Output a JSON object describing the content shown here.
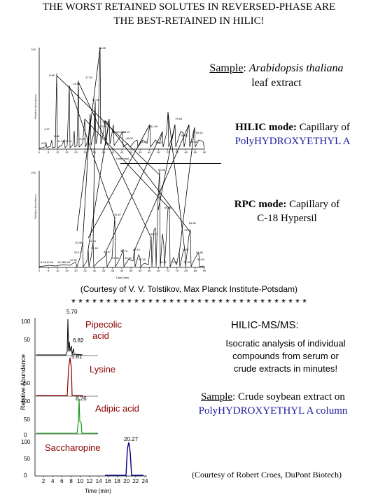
{
  "title": {
    "line1": "THE WORST RETAINED SOLUTES IN REVERSED-PHASE ARE",
    "line2": "THE BEST-RETAINED IN HILIC!"
  },
  "sample1": {
    "label": "Sample",
    "text_italic": "Arabidopsis thaliana",
    "text2": "leaf extract"
  },
  "hilic_mode": {
    "bold": "HILIC mode:",
    "text": "Capillary of",
    "column": "PolyHYDROXYETHYL A"
  },
  "rpc_mode": {
    "bold": "RPC mode:",
    "text": "Capillary of",
    "column": "C-18 Hypersil"
  },
  "chrom_top": {
    "ylabel": "Relative Abundance",
    "xlabel": "Time (min)",
    "xticks": [
      "0",
      "5",
      "10",
      "15",
      "20",
      "25",
      "30",
      "35",
      "40",
      "45",
      "50",
      "55",
      "60",
      "65",
      "70",
      "75",
      "80",
      "85",
      "90"
    ],
    "peak_labels": [
      "38.35",
      "8.98",
      "17.62",
      "14.82",
      "23.45",
      "19.05",
      "27.63",
      "42.32",
      "43.41",
      "41.21",
      "48.00",
      "61.49",
      "79.56",
      "76.66",
      "89.61",
      "51.37",
      "59.03",
      "85.00",
      "4.37",
      "9.88",
      "5.53",
      "11.36",
      "13.11",
      "13.99"
    ]
  },
  "chrom_bottom": {
    "ylabel": "Relative Abundance",
    "xlabel": "Time (min)",
    "xticks": [
      "0",
      "5",
      "10",
      "15",
      "20",
      "25",
      "30",
      "35",
      "40",
      "45",
      "50",
      "55",
      "60",
      "65",
      "70",
      "75",
      "80",
      "85",
      "90"
    ],
    "peak_labels": [
      "60.56",
      "66.01",
      "41.87",
      "81.62",
      "60.23",
      "76.76",
      "25.38",
      "29.28",
      "32.47",
      "32.80",
      "36.73",
      "25.12",
      "45.10",
      "73.97",
      "84.86",
      "90.00",
      "22.50",
      "8.15",
      "10.48",
      "15.32",
      "16.46",
      "37.84",
      "40.00",
      "51.35",
      "58.71",
      "72.84",
      "72.90"
    ]
  },
  "courtesy1": "(Courtesy of V. V. Tolstikov, Max Planck Institute-Potsdam)",
  "stars": "* * * * * * * * * * * * * * * * * * * * * * * * * * * * * * * * * *",
  "hilic_msms": {
    "title": "HILIC-MS/MS:",
    "desc": [
      "Isocratic analysis of individual",
      "compounds from serum or",
      "crude extracts in minutes!"
    ]
  },
  "sample2": {
    "label": "Sample",
    "text": "Crude soybean extract on",
    "column": "PolyHYDROXYETHYL A column"
  },
  "courtesy2": "(Courtesy of Robert Croes, DuPont Biotech)",
  "msms_chart": {
    "ylabel": "Relative Abundance",
    "xlabel": "Time (min)",
    "xticks": [
      "2",
      "4",
      "6",
      "8",
      "10",
      "12",
      "14",
      "16",
      "18",
      "20",
      "22",
      "24"
    ],
    "y_labels": {
      "p1_100": "100",
      "p1_50": "50",
      "p2_50": "50",
      "p3_100": "100",
      "p3_50": "50",
      "p3_0": "0",
      "p4_100": "100",
      "p4_50": "50",
      "p4_0": "0"
    },
    "panels": [
      {
        "name": "Pipecolic acid",
        "line1": "Pipecolic",
        "line2": "acid",
        "peaks": [
          "5.70",
          "6.82"
        ],
        "color": "#000000"
      },
      {
        "name": "Lysine",
        "peaks": [
          "5.81"
        ],
        "color": "#8b0000"
      },
      {
        "name": "Adipic acid",
        "peaks": [
          "8.26"
        ],
        "color": "#1a9a1a"
      },
      {
        "name": "Saccharopine",
        "peaks": [
          "20.27"
        ],
        "color": "#000080"
      }
    ]
  }
}
